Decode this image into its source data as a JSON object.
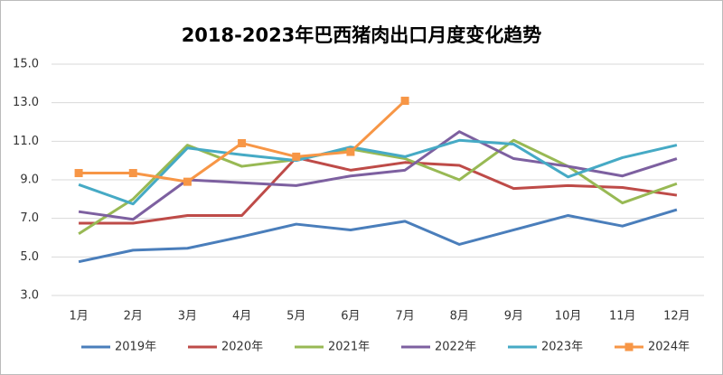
{
  "chart_data": {
    "type": "line",
    "title": "2018-2023年巴西猪肉出口月度变化趋势",
    "categories": [
      "1月",
      "2月",
      "3月",
      "4月",
      "5月",
      "6月",
      "7月",
      "8月",
      "9月",
      "10月",
      "11月",
      "12月"
    ],
    "ylim": [
      3.0,
      15.0
    ],
    "yticks": [
      {
        "value": 3.0,
        "label": "3.0"
      },
      {
        "value": 5.0,
        "label": "5.0"
      },
      {
        "value": 7.0,
        "label": "7.0"
      },
      {
        "value": 9.0,
        "label": "9.0"
      },
      {
        "value": 11.0,
        "label": "11.0"
      },
      {
        "value": 13.0,
        "label": "13.0"
      },
      {
        "value": 15.0,
        "label": "15.0"
      }
    ],
    "grid": true,
    "legend": "bottom",
    "series": [
      {
        "name": "2019年",
        "color": "#4a7ebb",
        "values": [
          4.75,
          5.35,
          5.45,
          6.05,
          6.7,
          6.4,
          6.85,
          5.65,
          6.4,
          7.15,
          6.6,
          7.45
        ]
      },
      {
        "name": "2020年",
        "color": "#be4b48",
        "values": [
          6.75,
          6.75,
          7.15,
          7.15,
          10.15,
          9.5,
          9.9,
          9.75,
          8.55,
          8.7,
          8.6,
          8.2
        ]
      },
      {
        "name": "2021年",
        "color": "#98b954",
        "values": [
          6.2,
          8.0,
          10.8,
          9.7,
          10.05,
          10.6,
          10.1,
          9.0,
          11.05,
          9.7,
          7.8,
          8.8
        ]
      },
      {
        "name": "2022年",
        "color": "#7d60a0",
        "values": [
          7.35,
          6.95,
          9.0,
          8.85,
          8.7,
          9.2,
          9.5,
          11.5,
          10.1,
          9.7,
          9.2,
          10.1
        ]
      },
      {
        "name": "2023年",
        "color": "#46aac5",
        "values": [
          8.75,
          7.75,
          10.65,
          10.3,
          10.0,
          10.7,
          10.2,
          11.05,
          10.85,
          9.15,
          10.15,
          10.8
        ]
      },
      {
        "name": "2024年",
        "color": "#f79646",
        "marker": "square",
        "values": [
          9.35,
          9.35,
          8.9,
          10.9,
          10.2,
          10.45,
          13.1,
          null,
          null,
          null,
          null,
          null
        ]
      }
    ]
  }
}
